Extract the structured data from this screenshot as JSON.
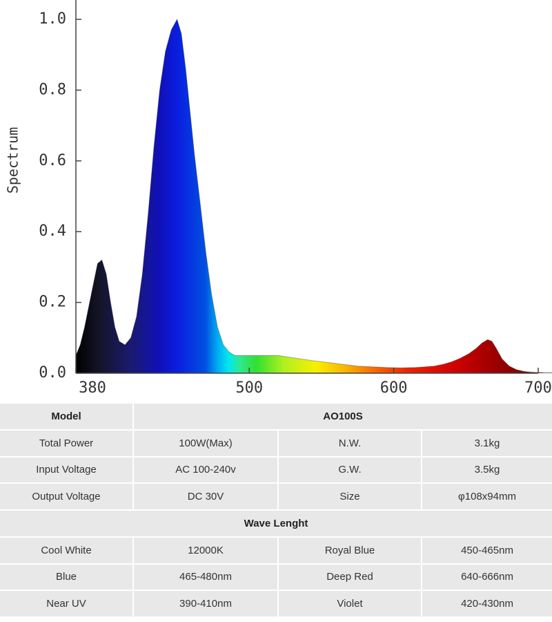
{
  "chart_data": {
    "type": "area",
    "ylabel": "Spectrum",
    "xlabel": "",
    "xlim": [
      380,
      700
    ],
    "ylim": [
      0,
      1.0
    ],
    "x_ticks": [
      "380",
      "500",
      "600",
      "700"
    ],
    "y_ticks": [
      "0.0",
      "0.2",
      "0.4",
      "0.6",
      "0.8",
      "1.0"
    ],
    "grid": false,
    "x": [
      380,
      383,
      386,
      389,
      392,
      395,
      398,
      401,
      404,
      407,
      410,
      414,
      418,
      422,
      426,
      430,
      434,
      438,
      442,
      446,
      450,
      453,
      456,
      459,
      462,
      466,
      470,
      474,
      478,
      482,
      486,
      490,
      494,
      498,
      505,
      512,
      520,
      528,
      536,
      545,
      555,
      565,
      575,
      585,
      595,
      605,
      615,
      622,
      628,
      634,
      640,
      646,
      652,
      657,
      661,
      665,
      668,
      671,
      675,
      680,
      685,
      690,
      695,
      700,
      705,
      711
    ],
    "y": [
      0.05,
      0.08,
      0.13,
      0.19,
      0.25,
      0.31,
      0.32,
      0.28,
      0.2,
      0.13,
      0.09,
      0.08,
      0.1,
      0.16,
      0.28,
      0.45,
      0.64,
      0.8,
      0.91,
      0.97,
      1.0,
      0.96,
      0.86,
      0.74,
      0.62,
      0.48,
      0.34,
      0.22,
      0.13,
      0.08,
      0.06,
      0.05,
      0.05,
      0.05,
      0.05,
      0.05,
      0.05,
      0.045,
      0.04,
      0.035,
      0.03,
      0.025,
      0.02,
      0.018,
      0.016,
      0.015,
      0.016,
      0.018,
      0.02,
      0.025,
      0.032,
      0.042,
      0.055,
      0.07,
      0.085,
      0.095,
      0.09,
      0.07,
      0.04,
      0.02,
      0.01,
      0.005,
      0.003,
      0.002,
      0.001,
      0.001
    ]
  },
  "table": {
    "model_label": "Model",
    "model_value": "AO100S",
    "specs": [
      [
        "Total Power",
        "100W(Max)",
        "N.W.",
        "3.1kg"
      ],
      [
        "Input Voltage",
        "AC 100-240v",
        "G.W.",
        "3.5kg"
      ],
      [
        "Output Voltage",
        "DC 30V",
        "Size",
        "φ108x94mm"
      ]
    ],
    "wave_header": "Wave Lenght",
    "waves": [
      [
        "Cool White",
        "12000K",
        "Royal Blue",
        "450-465nm"
      ],
      [
        "Blue",
        "465-480nm",
        "Deep Red",
        "640-666nm"
      ],
      [
        "Near UV",
        "390-410nm",
        "Violet",
        "420-430nm"
      ]
    ]
  }
}
